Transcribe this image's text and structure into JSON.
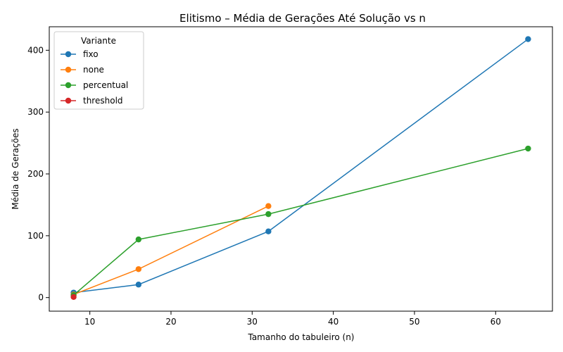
{
  "chart_data": {
    "type": "line",
    "title": "Elitismo – Média de Gerações Até Solução vs n",
    "xlabel": "Tamanho do tabuleiro (n)",
    "ylabel": "Média de Gerações",
    "xlim": [
      5,
      67
    ],
    "ylim": [
      -22,
      438
    ],
    "xticks": [
      10,
      20,
      30,
      40,
      50,
      60
    ],
    "yticks": [
      0,
      100,
      200,
      300,
      400
    ],
    "grid": false,
    "legend": {
      "title": "Variante",
      "position": "top-left"
    },
    "series": [
      {
        "name": "fixo",
        "color": "#1f77b4",
        "x": [
          8,
          16,
          32,
          64
        ],
        "y": [
          8,
          21,
          107,
          418
        ]
      },
      {
        "name": "none",
        "color": "#ff7f0e",
        "x": [
          8,
          16,
          32
        ],
        "y": [
          5,
          46,
          148
        ]
      },
      {
        "name": "percentual",
        "color": "#2ca02c",
        "x": [
          8,
          16,
          32,
          64
        ],
        "y": [
          4,
          94,
          135,
          241
        ]
      },
      {
        "name": "threshold",
        "color": "#d62728",
        "x": [
          8
        ],
        "y": [
          1
        ]
      }
    ]
  }
}
